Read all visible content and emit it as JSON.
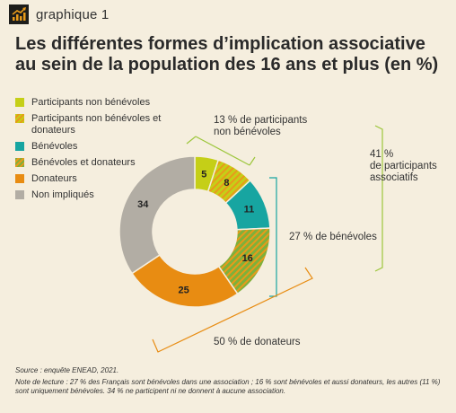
{
  "header": {
    "label": "graphique 1"
  },
  "colors": {
    "participants": "#c5cf17",
    "benevoles": "#17a5a1",
    "benevoles_donateurs": "#7fb03a",
    "donateurs": "#e88c12",
    "non_impliques": "#b2ada4",
    "hatch": "#e89a1a",
    "bracket_green": "#9cc63b",
    "bracket_teal": "#17a5a1",
    "bracket_orange": "#e88c12"
  },
  "chart_data": {
    "type": "pie",
    "title": "Les différentes formes d’implication associative au sein de la population des 16 ans et plus (en %)",
    "title_lines": [
      "Les différentes formes d’implication associative",
      "au sein de la population des 16 ans et plus (en %)"
    ],
    "legend": [
      {
        "label": "Participants non bénévoles",
        "key": "participants"
      },
      {
        "label": "Participants non bénévoles et donateurs",
        "key": "participants_donateurs"
      },
      {
        "label": "Bénévoles",
        "key": "benevoles"
      },
      {
        "label": "Bénévoles et donateurs",
        "key": "benevoles_donateurs"
      },
      {
        "label": "Donateurs",
        "key": "donateurs"
      },
      {
        "label": "Non impliqués",
        "key": "non_impliques"
      }
    ],
    "slices": [
      {
        "key": "participants",
        "label": "Participants non bénévoles",
        "value": 5
      },
      {
        "key": "participants_donateurs",
        "label": "Participants non bénévoles et donateurs",
        "value": 8
      },
      {
        "key": "benevoles",
        "label": "Bénévoles",
        "value": 11
      },
      {
        "key": "benevoles_donateurs",
        "label": "Bénévoles et donateurs",
        "value": 16
      },
      {
        "key": "donateurs",
        "label": "Donateurs",
        "value": 25
      },
      {
        "key": "non_impliques",
        "label": "Non impliqués",
        "value": 34
      }
    ],
    "annotations": {
      "participants": "13 % de participants non bénévoles",
      "participants_lines": [
        "13 % de participants",
        "non bénévoles"
      ],
      "associatifs_lines": [
        "41 %",
        "de participants",
        "associatifs"
      ],
      "benevoles": "27 % de bénévoles",
      "donateurs": "50 % de donateurs"
    }
  },
  "footer": {
    "source": "Source : enquête ENEAD, 2021.",
    "note": "Note de lecture : 27 % des Français sont bénévoles dans une association ; 16 % sont bénévoles et aussi donateurs, les autres (11 %) sont uniquement bénévoles. 34 % ne participent ni ne donnent à aucune association."
  }
}
